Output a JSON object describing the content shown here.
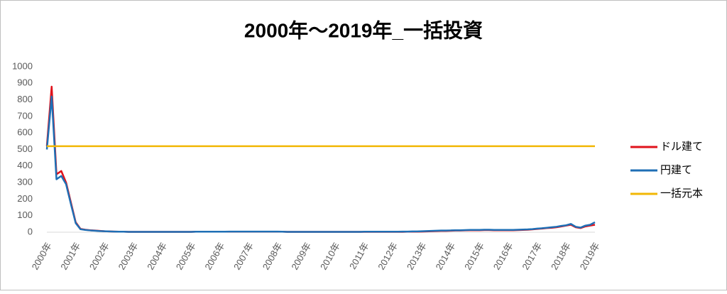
{
  "chart_data": {
    "type": "line",
    "title": "2000年～2019年_一括投資",
    "categories": [
      "2000年",
      null,
      null,
      null,
      null,
      null,
      "2001年",
      null,
      null,
      null,
      null,
      null,
      "2002年",
      null,
      null,
      null,
      null,
      null,
      "2003年",
      null,
      null,
      null,
      null,
      null,
      "2004年",
      null,
      null,
      null,
      null,
      null,
      "2005年",
      null,
      null,
      null,
      null,
      null,
      "2006年",
      null,
      null,
      null,
      null,
      null,
      "2007年",
      null,
      null,
      null,
      null,
      null,
      "2008年",
      null,
      null,
      null,
      null,
      null,
      "2009年",
      null,
      null,
      null,
      null,
      null,
      "2010年",
      null,
      null,
      null,
      null,
      null,
      "2011年",
      null,
      null,
      null,
      null,
      null,
      "2012年",
      null,
      null,
      null,
      null,
      null,
      "2013年",
      null,
      null,
      null,
      null,
      null,
      "2014年",
      null,
      null,
      null,
      null,
      null,
      "2015年",
      null,
      null,
      null,
      null,
      null,
      "2016年",
      null,
      null,
      null,
      null,
      null,
      "2017年",
      null,
      null,
      null,
      null,
      null,
      "2018年",
      null,
      null,
      null,
      null,
      null,
      "2019年"
    ],
    "series": [
      {
        "name": "ドル建て",
        "color": "#e0121b",
        "values": [
          520,
          880,
          350,
          370,
          300,
          180,
          60,
          20,
          15,
          12,
          10,
          8,
          6,
          5,
          4,
          3,
          3,
          2,
          2,
          2,
          2,
          2,
          2,
          2,
          2,
          2,
          2,
          2,
          2,
          2,
          2,
          3,
          3,
          3,
          3,
          3,
          3,
          3,
          3,
          3,
          3,
          3,
          3,
          3,
          3,
          3,
          3,
          3,
          3,
          3,
          2,
          2,
          2,
          2,
          2,
          2,
          2,
          2,
          2,
          2,
          2,
          2,
          2,
          2,
          2,
          2,
          2,
          2,
          2,
          2,
          2,
          2,
          2,
          2,
          2,
          3,
          3,
          3,
          4,
          5,
          6,
          7,
          8,
          8,
          9,
          10,
          10,
          11,
          12,
          12,
          12,
          13,
          13,
          12,
          12,
          12,
          12,
          12,
          13,
          14,
          15,
          17,
          20,
          22,
          25,
          27,
          30,
          35,
          40,
          45,
          30,
          25,
          35,
          40,
          45
        ]
      },
      {
        "name": "円建て",
        "color": "#1f6fb5",
        "values": [
          500,
          820,
          320,
          340,
          290,
          170,
          55,
          18,
          14,
          11,
          9,
          7,
          6,
          5,
          4,
          3,
          3,
          2,
          2,
          2,
          2,
          2,
          2,
          2,
          2,
          2,
          2,
          2,
          2,
          2,
          2,
          3,
          3,
          3,
          3,
          3,
          3,
          3,
          4,
          4,
          4,
          4,
          4,
          4,
          4,
          4,
          4,
          4,
          4,
          3,
          2,
          2,
          2,
          2,
          2,
          2,
          2,
          2,
          2,
          2,
          2,
          2,
          2,
          2,
          2,
          2,
          3,
          3,
          3,
          3,
          3,
          3,
          3,
          3,
          4,
          4,
          5,
          5,
          6,
          7,
          8,
          9,
          10,
          10,
          11,
          12,
          12,
          13,
          14,
          14,
          14,
          15,
          15,
          14,
          14,
          14,
          14,
          14,
          15,
          16,
          17,
          19,
          22,
          24,
          27,
          30,
          33,
          38,
          42,
          50,
          33,
          28,
          40,
          45,
          60
        ]
      },
      {
        "name": "一括元本",
        "color": "#f2b705",
        "values": [
          520,
          520,
          520,
          520,
          520,
          520,
          520,
          520,
          520,
          520,
          520,
          520,
          520,
          520,
          520,
          520,
          520,
          520,
          520,
          520,
          520,
          520,
          520,
          520,
          520,
          520,
          520,
          520,
          520,
          520,
          520,
          520,
          520,
          520,
          520,
          520,
          520,
          520,
          520,
          520,
          520,
          520,
          520,
          520,
          520,
          520,
          520,
          520,
          520,
          520,
          520,
          520,
          520,
          520,
          520,
          520,
          520,
          520,
          520,
          520,
          520,
          520,
          520,
          520,
          520,
          520,
          520,
          520,
          520,
          520,
          520,
          520,
          520,
          520,
          520,
          520,
          520,
          520,
          520,
          520,
          520,
          520,
          520,
          520,
          520,
          520,
          520,
          520,
          520,
          520,
          520,
          520,
          520,
          520,
          520,
          520,
          520,
          520,
          520,
          520,
          520,
          520,
          520,
          520,
          520,
          520,
          520,
          520,
          520,
          520,
          520,
          520,
          520,
          520,
          520
        ]
      }
    ],
    "ylim": [
      0,
      1000
    ],
    "yticks": [
      0,
      100,
      200,
      300,
      400,
      500,
      600,
      700,
      800,
      900,
      1000
    ],
    "legend": "right"
  }
}
